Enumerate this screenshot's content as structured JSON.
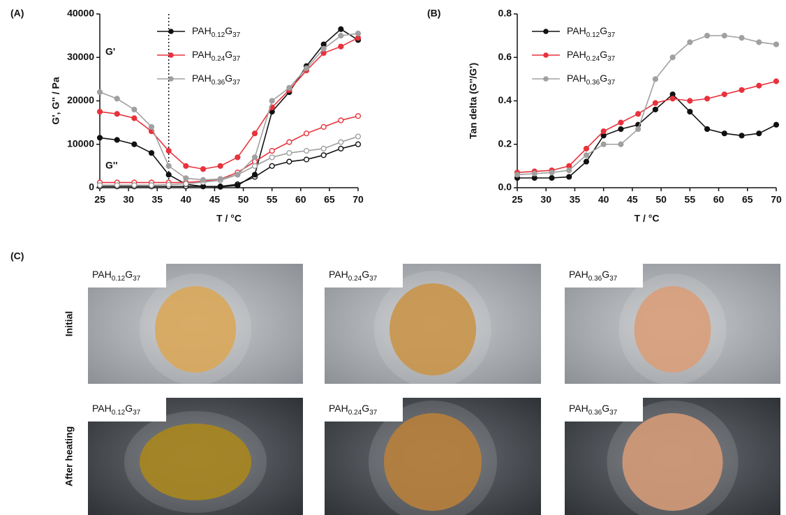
{
  "panel_labels": [
    "(A)",
    "(B)",
    "(C)"
  ],
  "chart_data": [
    {
      "type": "line",
      "xlabel": "T / °C",
      "ylabel": "G', G'' / Pa",
      "annotations": [
        "G'",
        "G''"
      ],
      "vline": 37,
      "x": [
        25,
        28,
        31,
        34,
        37,
        40,
        43,
        46,
        49,
        52,
        55,
        58,
        61,
        64,
        67,
        70
      ],
      "xlim": [
        25,
        70
      ],
      "xticks": [
        25,
        30,
        35,
        40,
        45,
        50,
        55,
        60,
        65,
        70
      ],
      "ylim": [
        0,
        40000
      ],
      "yticks": [
        0,
        10000,
        20000,
        30000,
        40000
      ],
      "series": [
        {
          "name": "PAH0.12G37",
          "color": "#111111",
          "values": [
            11500,
            11000,
            10000,
            8000,
            3000,
            800,
            300,
            200,
            500,
            3000,
            17500,
            22000,
            28000,
            33000,
            36500,
            34000
          ],
          "loss_values": [
            300,
            300,
            300,
            300,
            300,
            300,
            300,
            300,
            800,
            2500,
            5000,
            6000,
            6500,
            7500,
            9000,
            10000
          ]
        },
        {
          "name": "PAH0.24G37",
          "color": "#e8323c",
          "values": [
            17500,
            17000,
            16000,
            13000,
            8500,
            5000,
            4300,
            5000,
            7000,
            12500,
            18500,
            22500,
            27000,
            31000,
            32500,
            34500
          ],
          "loss_values": [
            1200,
            1200,
            1200,
            1200,
            1200,
            1200,
            1500,
            2000,
            3500,
            6000,
            8500,
            10500,
            12500,
            14000,
            15500,
            16500
          ]
        },
        {
          "name": "PAH0.36G37",
          "color": "#a0a0a0",
          "values": [
            22000,
            20500,
            18000,
            14000,
            5000,
            2200,
            1800,
            2000,
            3000,
            7000,
            20000,
            23000,
            27500,
            32000,
            35000,
            35500
          ],
          "loss_values": [
            600,
            600,
            600,
            600,
            700,
            900,
            1300,
            1700,
            3000,
            5000,
            7000,
            8000,
            8500,
            9000,
            10500,
            11800
          ]
        }
      ]
    },
    {
      "type": "line",
      "xlabel": "T / °C",
      "ylabel": "Tan delta (G''/G')",
      "x": [
        25,
        28,
        31,
        34,
        37,
        40,
        43,
        46,
        49,
        52,
        55,
        58,
        61,
        64,
        67,
        70
      ],
      "xlim": [
        25,
        70
      ],
      "xticks": [
        25,
        30,
        35,
        40,
        45,
        50,
        55,
        60,
        65,
        70
      ],
      "ylim": [
        0,
        0.8
      ],
      "yticks": [
        {
          "value": 0,
          "label": "0.0"
        },
        0.2,
        0.4,
        0.6,
        0.8
      ],
      "series": [
        {
          "name": "PAH0.12G37",
          "color": "#111111",
          "values": [
            0.045,
            0.045,
            0.045,
            0.05,
            0.12,
            0.24,
            0.27,
            0.29,
            0.36,
            0.43,
            0.35,
            0.27,
            0.25,
            0.24,
            0.25,
            0.29
          ]
        },
        {
          "name": "PAH0.24G37",
          "color": "#e8323c",
          "values": [
            0.07,
            0.075,
            0.08,
            0.1,
            0.18,
            0.26,
            0.3,
            0.34,
            0.39,
            0.41,
            0.4,
            0.41,
            0.43,
            0.45,
            0.47,
            0.49
          ]
        },
        {
          "name": "PAH0.36G37",
          "color": "#a0a0a0",
          "values": [
            0.06,
            0.065,
            0.07,
            0.08,
            0.15,
            0.2,
            0.2,
            0.27,
            0.5,
            0.6,
            0.67,
            0.7,
            0.7,
            0.69,
            0.67,
            0.66
          ]
        }
      ]
    }
  ],
  "photos": {
    "row_labels": [
      "Initial",
      "After heating"
    ],
    "captions": [
      [
        "PAH0.12G37",
        "PAH0.24G37",
        "PAH0.36G37"
      ],
      [
        "PAH0.12G37",
        "PAH0.24G37",
        "PAH0.36G37"
      ]
    ]
  }
}
